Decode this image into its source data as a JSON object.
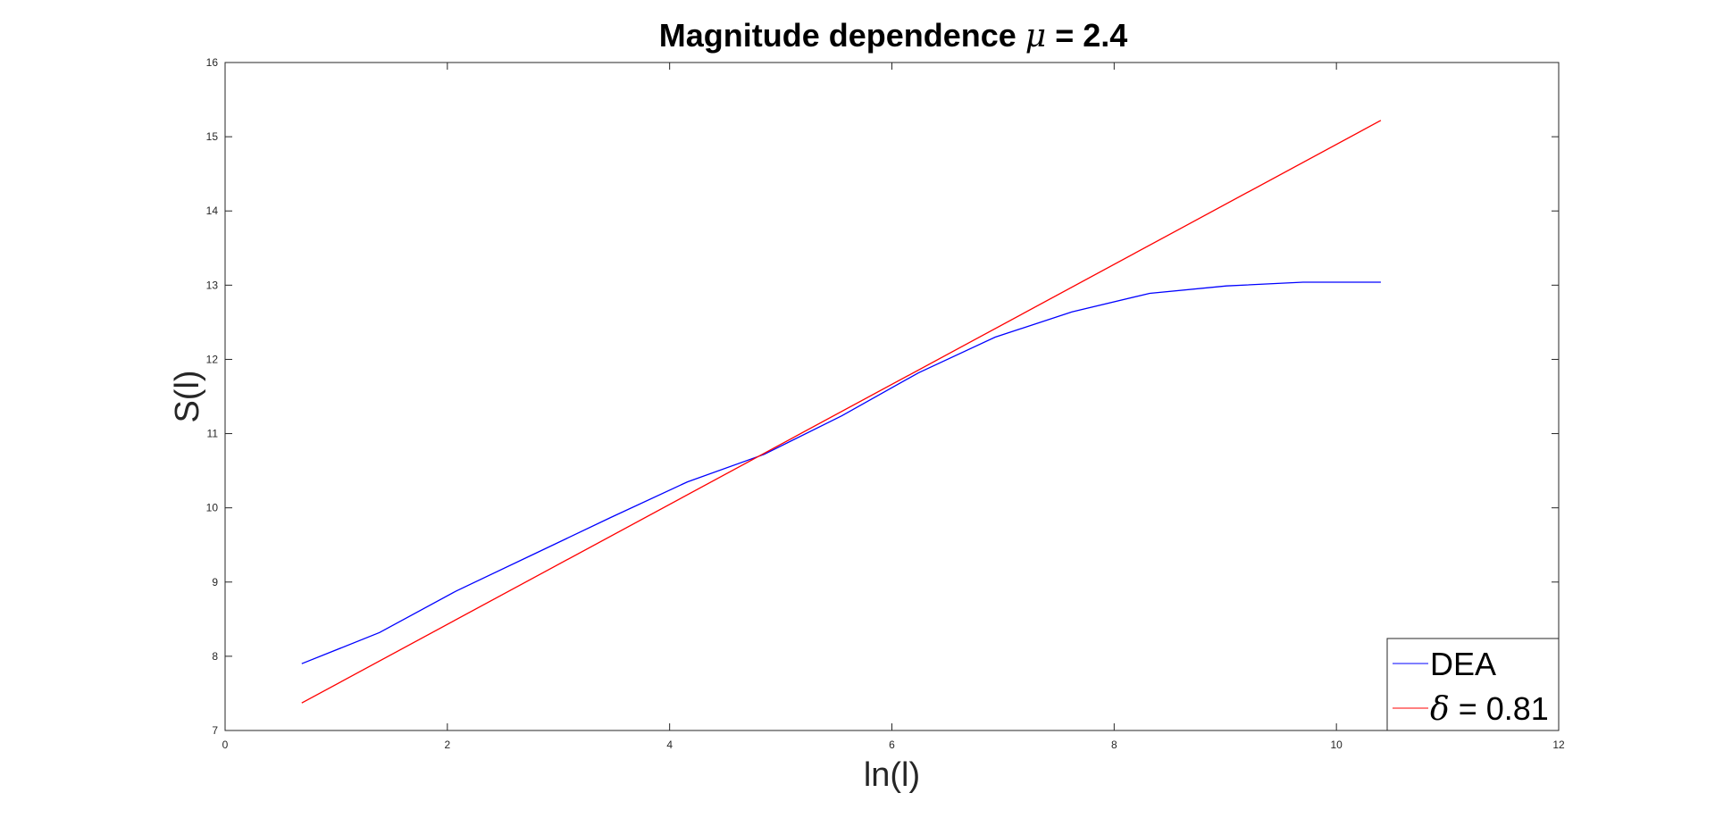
{
  "chart_data": {
    "type": "line",
    "title_prefix": "Magnitude dependence ",
    "title_symbol": "μ",
    "title_suffix": " = 2.4",
    "xlabel": "ln(l)",
    "ylabel": "S(l)",
    "xlim": [
      0,
      12
    ],
    "ylim": [
      7,
      16
    ],
    "xticks": [
      0,
      2,
      4,
      6,
      8,
      10,
      12
    ],
    "yticks": [
      7,
      8,
      9,
      10,
      11,
      12,
      13,
      14,
      15,
      16
    ],
    "grid": false,
    "legend_position": "bottom-right",
    "series": [
      {
        "name": "DEA",
        "color": "#0000ff",
        "x": [
          0.69,
          1.39,
          2.08,
          2.77,
          3.47,
          4.16,
          4.85,
          5.55,
          6.24,
          6.93,
          7.62,
          8.32,
          9.01,
          9.7,
          10.4
        ],
        "y": [
          7.9,
          8.32,
          8.88,
          9.37,
          9.87,
          10.35,
          10.72,
          11.24,
          11.82,
          12.3,
          12.64,
          12.89,
          12.99,
          13.04,
          13.04
        ]
      },
      {
        "name_symbol": "δ",
        "name_suffix": " = 0.81",
        "color": "#ff0000",
        "x": [
          0.69,
          10.4
        ],
        "y": [
          7.37,
          15.22
        ]
      }
    ]
  }
}
